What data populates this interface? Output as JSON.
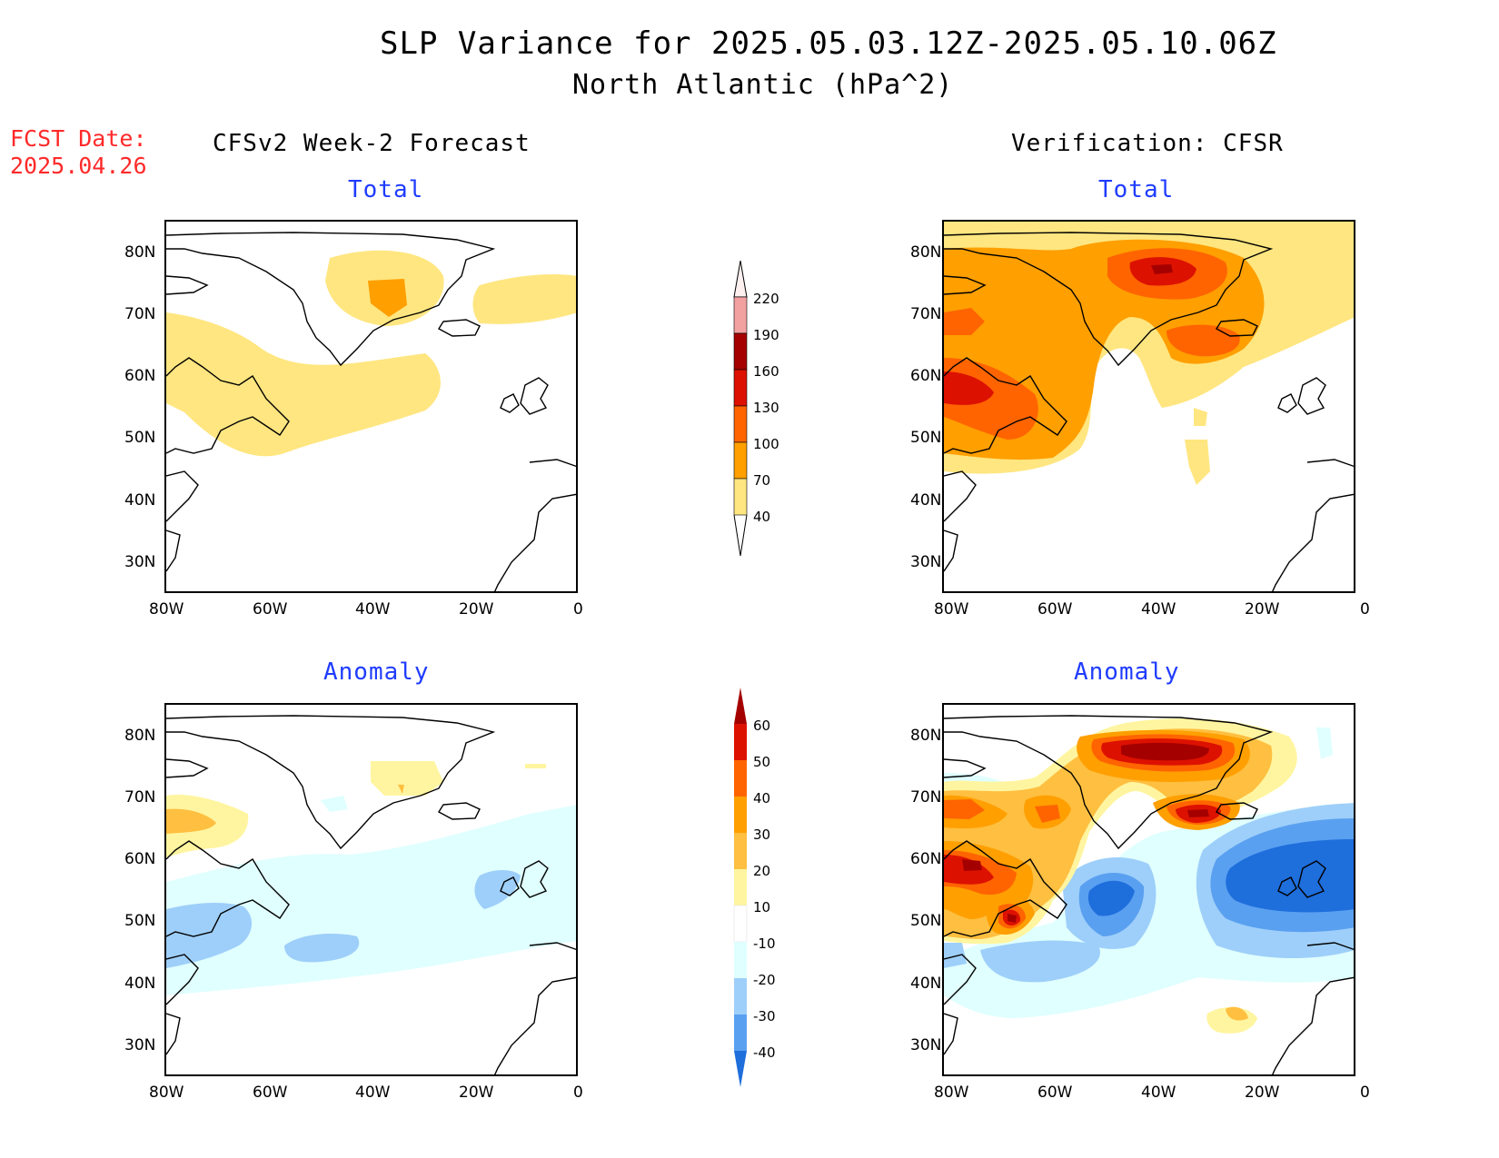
{
  "title": "SLP Variance for 2025.05.03.12Z-2025.05.10.06Z",
  "subtitle": "North Atlantic (hPa^2)",
  "fcst_label": "FCST Date:",
  "fcst_date": "2025.04.26",
  "left_header": "CFSv2 Week-2 Forecast",
  "right_header": "Verification: CFSR",
  "panels": {
    "top_left_sub": "Total",
    "top_right_sub": "Total",
    "bottom_left_sub": "Anomaly",
    "bottom_right_sub": "Anomaly"
  },
  "lat_ticks": [
    "80N",
    "70N",
    "60N",
    "50N",
    "40N",
    "30N"
  ],
  "lon_ticks": [
    "80W",
    "60W",
    "40W",
    "20W",
    "0"
  ],
  "total_colorbar": {
    "levels": [
      "220",
      "190",
      "160",
      "130",
      "100",
      "70",
      "40"
    ],
    "colors": [
      "#fff0f0",
      "#f2a0a0",
      "#a50000",
      "#dd1100",
      "#ff6400",
      "#ff9f00",
      "#ffe680"
    ]
  },
  "anomaly_colorbar": {
    "levels": [
      "60",
      "50",
      "40",
      "30",
      "20",
      "10",
      "-10",
      "-20",
      "-30",
      "-40"
    ],
    "colors": [
      "#a50000",
      "#dd1100",
      "#ff6400",
      "#ff9f00",
      "#ffbf40",
      "#fff5a0",
      "#ffffff",
      "#e0ffff",
      "#9ecffa",
      "#5aa0f0",
      "#1e6edc",
      "#1464d2"
    ]
  }
}
